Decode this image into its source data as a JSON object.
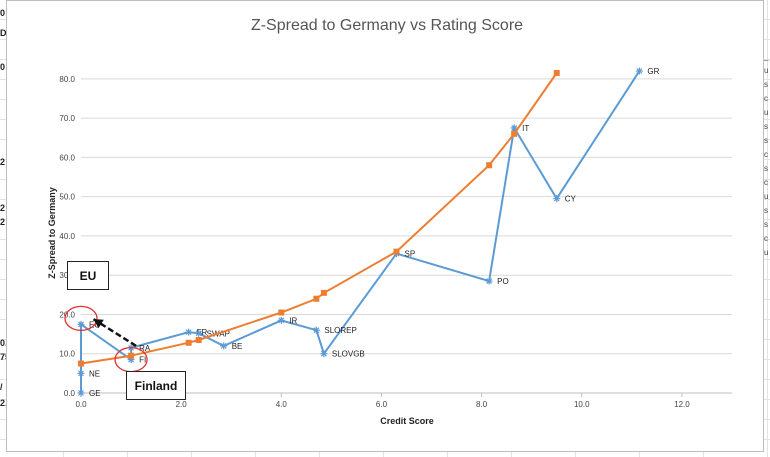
{
  "chart_data": {
    "type": "line",
    "title": "Z-Spread to Germany vs Rating Score",
    "xlabel": "Credit Score",
    "ylabel": "Z-Spread to Germany",
    "xlim": [
      0,
      13
    ],
    "ylim": [
      0,
      82
    ],
    "xticks": [
      0,
      2,
      4,
      6,
      8,
      10,
      12
    ],
    "xtick_labels": [
      "0.0",
      "2.0",
      "4.0",
      "6.0",
      "8.0",
      "10.0",
      "12.0"
    ],
    "yticks": [
      0,
      10,
      20,
      30,
      40,
      50,
      60,
      70,
      80
    ],
    "ytick_labels": [
      "0.0",
      "10.0",
      "20.0",
      "30.0",
      "40.0",
      "50.0",
      "60.0",
      "70.0",
      "80.0"
    ],
    "grid": "horizontal",
    "series": [
      {
        "color": "#5b9bd5",
        "marker": "asterisk",
        "points": [
          {
            "x": 0.0,
            "y": 0.0,
            "label": "GE"
          },
          {
            "x": 0.0,
            "y": 5.0,
            "label": "NE"
          },
          {
            "x": 0.0,
            "y": 17.5,
            "label": "EU"
          },
          {
            "x": 1.0,
            "y": 8.5,
            "label": "FI"
          },
          {
            "x": 1.0,
            "y": 11.5,
            "label": "RA"
          },
          {
            "x": 2.15,
            "y": 15.5,
            "label": "FR"
          },
          {
            "x": 2.35,
            "y": 15.2,
            "label": "SWAP"
          },
          {
            "x": 2.85,
            "y": 12.0,
            "label": "BE"
          },
          {
            "x": 4.0,
            "y": 18.5,
            "label": "IR"
          },
          {
            "x": 4.7,
            "y": 16.0,
            "label": "SLOREP"
          },
          {
            "x": 4.85,
            "y": 10.0,
            "label": "SLOVGB"
          },
          {
            "x": 6.3,
            "y": 35.5,
            "label": "SP"
          },
          {
            "x": 8.15,
            "y": 28.5,
            "label": "PO"
          },
          {
            "x": 8.65,
            "y": 67.5,
            "label": "IT"
          },
          {
            "x": 9.5,
            "y": 49.5,
            "label": "CY"
          },
          {
            "x": 11.15,
            "y": 82.0,
            "label": "GR"
          }
        ]
      },
      {
        "color": "#ed7d31",
        "marker": "square",
        "points": [
          {
            "x": 0.0,
            "y": 7.5
          },
          {
            "x": 1.0,
            "y": 9.5
          },
          {
            "x": 2.15,
            "y": 12.8
          },
          {
            "x": 2.35,
            "y": 13.5
          },
          {
            "x": 4.0,
            "y": 20.5
          },
          {
            "x": 4.7,
            "y": 24.0
          },
          {
            "x": 4.85,
            "y": 25.5
          },
          {
            "x": 6.3,
            "y": 36.0
          },
          {
            "x": 8.15,
            "y": 58.0
          },
          {
            "x": 8.65,
            "y": 66.0
          },
          {
            "x": 9.5,
            "y": 81.5
          }
        ]
      }
    ],
    "annotations": {
      "eu_box": "EU",
      "finland_box": "Finland",
      "circles": [
        {
          "x": 0.0,
          "y": 19.0
        },
        {
          "x": 1.0,
          "y": 8.5
        }
      ],
      "arrow": {
        "from": {
          "x": 1.1,
          "y": 12.0
        },
        "to": {
          "x": 0.25,
          "y": 18.8
        }
      }
    }
  },
  "sheet_fragments": {
    "left": [
      "0",
      "D",
      "0",
      "2",
      "2",
      "2",
      "0.",
      "75",
      "/",
      "2,"
    ],
    "right": [
      "_",
      "u",
      "s",
      "c",
      "u",
      "s",
      "s",
      "c",
      "s",
      "c",
      "u",
      "s",
      "s",
      "c",
      "u"
    ]
  }
}
